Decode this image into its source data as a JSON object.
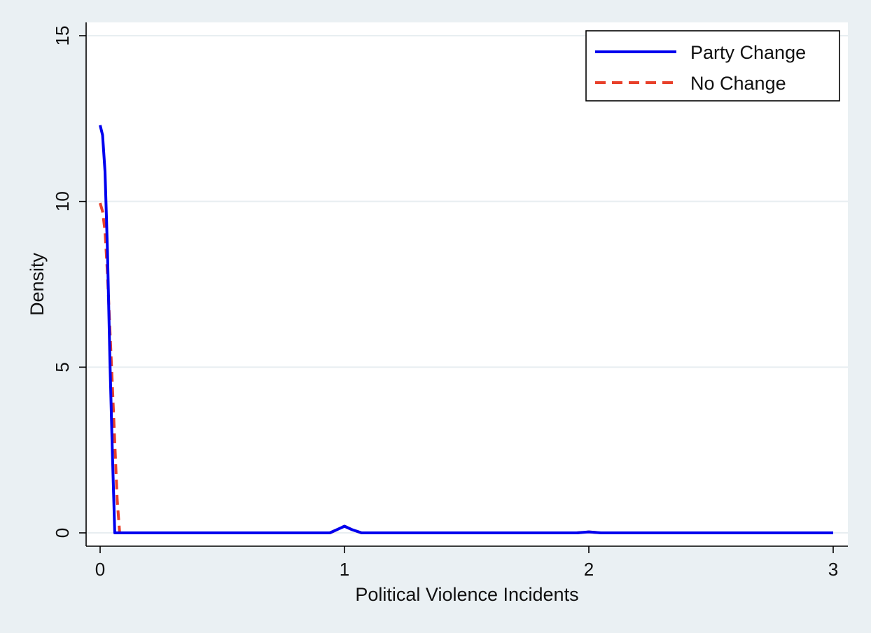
{
  "chart_data": {
    "type": "line",
    "xlabel": "Political Violence Incidents",
    "ylabel": "Density",
    "xlim": [
      0,
      3
    ],
    "ylim": [
      0,
      15
    ],
    "x_ticks": [
      0,
      1,
      2,
      3
    ],
    "y_ticks": [
      0,
      5,
      10,
      15
    ],
    "grid": "horizontal",
    "legend_position": "top-right",
    "series": [
      {
        "name": "Party Change",
        "color": "#0000ee",
        "style": "solid",
        "points": [
          [
            0,
            12.3
          ],
          [
            0.01,
            12.0
          ],
          [
            0.02,
            10.9
          ],
          [
            0.03,
            8.5
          ],
          [
            0.04,
            5.2
          ],
          [
            0.05,
            2.5
          ],
          [
            0.06,
            0.0
          ],
          [
            0.94,
            0.0
          ],
          [
            0.97,
            0.1
          ],
          [
            1.0,
            0.2
          ],
          [
            1.03,
            0.1
          ],
          [
            1.07,
            0.0
          ],
          [
            1.95,
            0.0
          ],
          [
            2.0,
            0.03
          ],
          [
            2.05,
            0.0
          ],
          [
            3.0,
            0.0
          ]
        ]
      },
      {
        "name": "No Change",
        "color": "#e8402a",
        "style": "dashed",
        "points": [
          [
            0,
            9.95
          ],
          [
            0.01,
            9.7
          ],
          [
            0.02,
            9.1
          ],
          [
            0.03,
            7.8
          ],
          [
            0.05,
            4.5
          ],
          [
            0.07,
            1.0
          ],
          [
            0.08,
            0.0
          ],
          [
            0.94,
            0.0
          ],
          [
            0.97,
            0.1
          ],
          [
            1.0,
            0.2
          ],
          [
            1.03,
            0.1
          ],
          [
            1.07,
            0.0
          ],
          [
            1.95,
            0.0
          ],
          [
            2.0,
            0.03
          ],
          [
            2.05,
            0.0
          ],
          [
            3.0,
            0.0
          ]
        ]
      }
    ]
  }
}
